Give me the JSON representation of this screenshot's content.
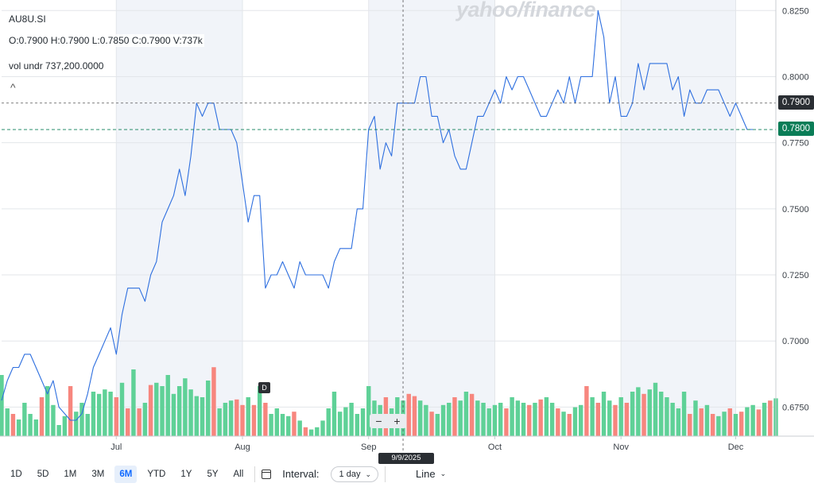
{
  "ticker": "AU8U.SI",
  "ohlcv": "O:0.7900  H:0.7900  L:0.7850  C:0.7900  V:737k",
  "vol_undr": "vol undr  737,200.0000",
  "collapse_glyph": "^",
  "watermark": "yahoo/finance",
  "colors": {
    "line": "#2e6fdf",
    "vol_up": "#5fd197",
    "vol_down": "#f7867e",
    "shade": "#f1f4f9",
    "grid": "#e3e6ea",
    "last_price_line": "#0a7d57"
  },
  "toolbar": {
    "ranges": [
      "1D",
      "5D",
      "1M",
      "3M",
      "6M",
      "YTD",
      "1Y",
      "5Y",
      "All"
    ],
    "active_range": "6M",
    "calendar_icon": "calendar-icon",
    "interval_label": "Interval:",
    "interval_value": "1 day",
    "chart_type": "Line"
  },
  "zoom": {
    "minus": "−",
    "plus": "+"
  },
  "cursor_date": "9/9/2025",
  "dividend_marker": "D",
  "crosshair_price": "0.7900",
  "last_price": "0.7800",
  "chart_data": {
    "type": "line",
    "title": "",
    "y_ticks": [
      "0.8250",
      "0.8000",
      "0.7750",
      "0.7500",
      "0.7250",
      "0.7000",
      "0.6750"
    ],
    "ylim": [
      0.664,
      0.829
    ],
    "x_ticks": [
      "Jul",
      "Aug",
      "Sep",
      "Oct",
      "Nov",
      "Dec"
    ],
    "x_tick_index": [
      20,
      42,
      64,
      86,
      108,
      128
    ],
    "n_days": 136,
    "price": [
      0.6775,
      0.685,
      0.69,
      0.69,
      0.695,
      0.695,
      0.69,
      0.685,
      0.68,
      0.685,
      0.675,
      0.6725,
      0.67,
      0.67,
      0.6725,
      0.68,
      0.69,
      0.695,
      0.7,
      0.705,
      0.695,
      0.71,
      0.72,
      0.72,
      0.72,
      0.715,
      0.725,
      0.73,
      0.745,
      0.75,
      0.755,
      0.765,
      0.755,
      0.77,
      0.79,
      0.785,
      0.79,
      0.79,
      0.78,
      0.78,
      0.78,
      0.775,
      0.76,
      0.745,
      0.755,
      0.755,
      0.72,
      0.725,
      0.725,
      0.73,
      0.725,
      0.72,
      0.73,
      0.725,
      0.725,
      0.725,
      0.725,
      0.72,
      0.73,
      0.735,
      0.735,
      0.735,
      0.75,
      0.75,
      0.78,
      0.785,
      0.765,
      0.775,
      0.77,
      0.79,
      0.79,
      0.79,
      0.79,
      0.8,
      0.8,
      0.785,
      0.785,
      0.775,
      0.78,
      0.77,
      0.765,
      0.765,
      0.775,
      0.785,
      0.785,
      0.79,
      0.795,
      0.79,
      0.8,
      0.795,
      0.8,
      0.8,
      0.795,
      0.79,
      0.785,
      0.785,
      0.79,
      0.795,
      0.79,
      0.8,
      0.79,
      0.8,
      0.8,
      0.8,
      0.825,
      0.815,
      0.79,
      0.8,
      0.785,
      0.785,
      0.79,
      0.805,
      0.795,
      0.805,
      0.805,
      0.805,
      0.805,
      0.795,
      0.8,
      0.785,
      0.795,
      0.79,
      0.79,
      0.795,
      0.795,
      0.795,
      0.79,
      0.785,
      0.79,
      0.785,
      0.78,
      0.78
    ],
    "volume": [
      0.55,
      0.25,
      0.2,
      0.15,
      0.3,
      0.2,
      0.15,
      0.35,
      0.45,
      0.28,
      0.1,
      0.18,
      0.45,
      0.22,
      0.3,
      0.2,
      0.4,
      0.38,
      0.42,
      0.4,
      0.35,
      0.48,
      0.25,
      0.6,
      0.25,
      0.3,
      0.46,
      0.48,
      0.45,
      0.55,
      0.38,
      0.45,
      0.52,
      0.42,
      0.36,
      0.35,
      0.5,
      0.62,
      0.25,
      0.3,
      0.32,
      0.33,
      0.28,
      0.35,
      0.28,
      0.45,
      0.3,
      0.2,
      0.25,
      0.2,
      0.18,
      0.22,
      0.14,
      0.08,
      0.06,
      0.08,
      0.14,
      0.25,
      0.4,
      0.22,
      0.26,
      0.3,
      0.2,
      0.25,
      0.45,
      0.32,
      0.28,
      0.35,
      0.25,
      0.35,
      0.32,
      0.38,
      0.36,
      0.32,
      0.28,
      0.22,
      0.2,
      0.28,
      0.3,
      0.35,
      0.32,
      0.4,
      0.38,
      0.32,
      0.3,
      0.25,
      0.28,
      0.3,
      0.25,
      0.35,
      0.32,
      0.3,
      0.28,
      0.3,
      0.33,
      0.35,
      0.3,
      0.25,
      0.22,
      0.2,
      0.26,
      0.28,
      0.45,
      0.35,
      0.3,
      0.4,
      0.32,
      0.28,
      0.35,
      0.3,
      0.4,
      0.44,
      0.38,
      0.42,
      0.48,
      0.4,
      0.35,
      0.3,
      0.25,
      0.4,
      0.2,
      0.32,
      0.25,
      0.28,
      0.2,
      0.18,
      0.22,
      0.25,
      0.2,
      0.22,
      0.26,
      0.28,
      0.24,
      0.3,
      0.32,
      0.34
    ],
    "volume_up": [
      1,
      1,
      0,
      1,
      1,
      1,
      1,
      0,
      1,
      1,
      1,
      1,
      0,
      1,
      1,
      1,
      1,
      1,
      1,
      1,
      0,
      1,
      0,
      1,
      0,
      1,
      0,
      1,
      1,
      1,
      1,
      1,
      1,
      1,
      1,
      1,
      1,
      0,
      1,
      1,
      1,
      0,
      0,
      1,
      0,
      1,
      0,
      1,
      1,
      1,
      1,
      0,
      1,
      0,
      1,
      1,
      1,
      1,
      1,
      1,
      1,
      1,
      1,
      1,
      1,
      1,
      1,
      0,
      1,
      1,
      1,
      0,
      0,
      1,
      1,
      0,
      1,
      1,
      1,
      0,
      1,
      1,
      0,
      1,
      1,
      1,
      1,
      1,
      0,
      1,
      1,
      1,
      0,
      1,
      0,
      1,
      1,
      0,
      1,
      0,
      1,
      1,
      0,
      1,
      0,
      1,
      1,
      0,
      1,
      0,
      1,
      1,
      0,
      1,
      1,
      1,
      1,
      1,
      1,
      1,
      0,
      1,
      0,
      1,
      0,
      1,
      1,
      0,
      1,
      0,
      1,
      1,
      0,
      1,
      0,
      1
    ]
  }
}
